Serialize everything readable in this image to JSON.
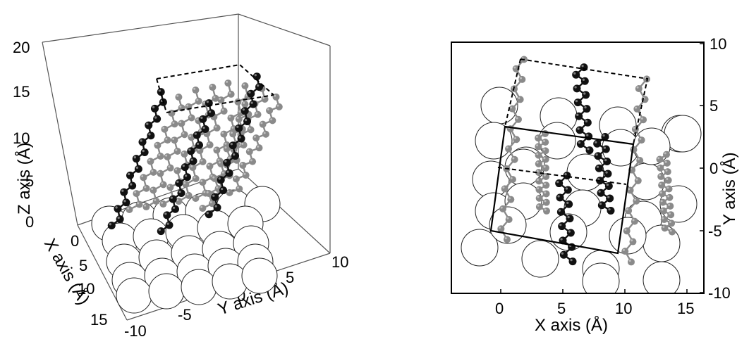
{
  "colors": {
    "substrate_fill": "#ffffff",
    "substrate_stroke": "#222222",
    "chain_dark": "#111111",
    "chain_grey": "#8a8a8a",
    "background": "#ffffff"
  },
  "left_panel": {
    "z_axis": {
      "label": "Z axis (Å)",
      "ticks": [
        "0",
        "5",
        "10",
        "15",
        "20"
      ]
    },
    "x_axis": {
      "label": "X axis (Å)",
      "ticks": [
        "0",
        "5",
        "10",
        "15"
      ]
    },
    "y_axis": {
      "label": "Y axis (Å)",
      "ticks": [
        "-10",
        "-5",
        "0",
        "5",
        "10"
      ]
    }
  },
  "right_panel": {
    "x_axis": {
      "label": "X axis (Å)",
      "ticks": [
        "0",
        "5",
        "10",
        "15"
      ]
    },
    "y_axis": {
      "label": "Y axis (Å)",
      "ticks": [
        "10",
        "5",
        "0",
        "-5",
        "-10"
      ]
    }
  }
}
